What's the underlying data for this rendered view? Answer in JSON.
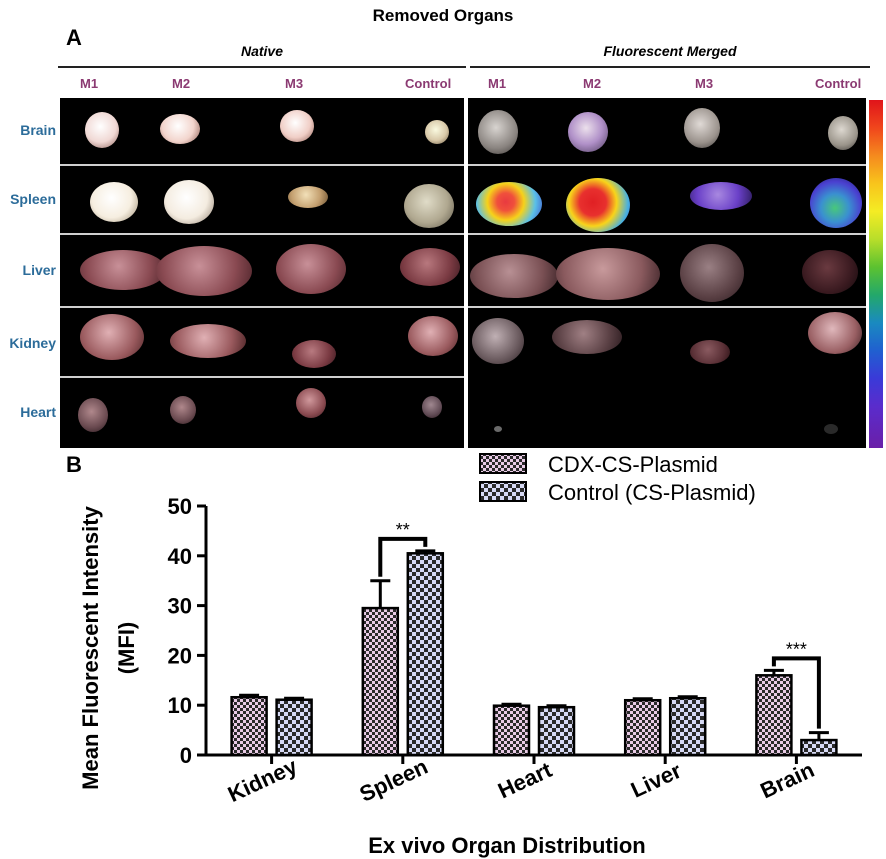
{
  "panel_a": {
    "letter": "A",
    "title": "Removed Organs",
    "groups": [
      "Native",
      "Fluorescent Merged"
    ],
    "columns": [
      "M1",
      "M2",
      "M3",
      "Control"
    ],
    "rows": [
      "Brain",
      "Spleen",
      "Liver",
      "Kidney",
      "Heart"
    ]
  },
  "panel_b": {
    "letter": "B"
  },
  "chart_data": {
    "type": "bar",
    "categories": [
      "Kidney",
      "Spleen",
      "Heart",
      "Liver",
      "Brain"
    ],
    "series": [
      {
        "name": "CDX-CS-Plasmid",
        "values": [
          11.6,
          29.5,
          9.9,
          11.0,
          16.0
        ],
        "errors": [
          0.4,
          5.5,
          0.3,
          0.3,
          1.0
        ]
      },
      {
        "name": "Control (CS-Plasmid)",
        "values": [
          11.1,
          40.5,
          9.6,
          11.4,
          3.0
        ],
        "errors": [
          0.3,
          0.5,
          0.3,
          0.3,
          1.5
        ]
      }
    ],
    "xlabel": "Ex vivo Organ Distribution",
    "ylabel_line1": "Mean Fluorescent Intensity",
    "ylabel_line2": "(MFI)",
    "ylim": [
      0,
      50
    ],
    "yticks": [
      0,
      10,
      20,
      30,
      40,
      50
    ],
    "significance": [
      {
        "category": "Spleen",
        "label": "**"
      },
      {
        "category": "Brain",
        "label": "***"
      }
    ],
    "legend_position": "top-right"
  }
}
